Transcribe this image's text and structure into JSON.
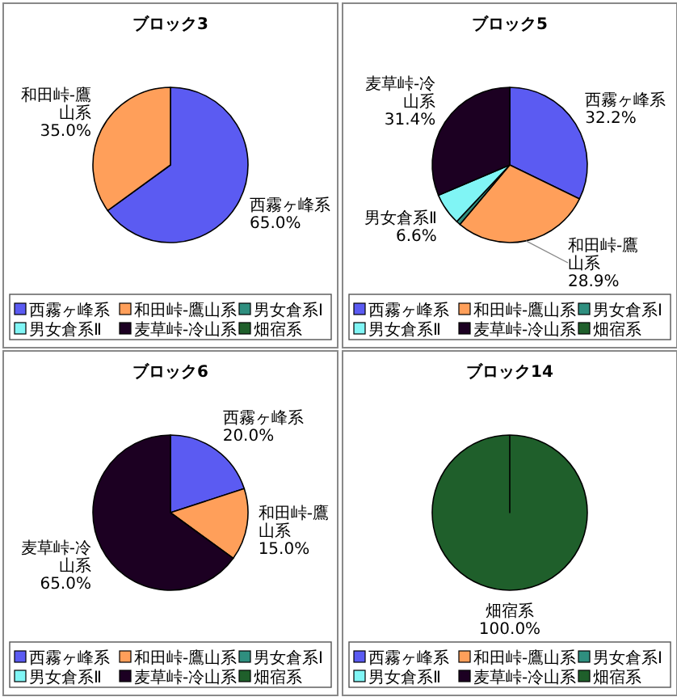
{
  "chart_data": [
    {
      "type": "pie",
      "title": "ブロック3",
      "categories": [
        "西霧ヶ峰系",
        "和田峠-鷹山系",
        "男女倉系Ⅰ",
        "男女倉系Ⅱ",
        "麦草峠-冷山系",
        "畑宿系"
      ],
      "values": [
        65.0,
        35.0,
        0,
        0,
        0,
        0
      ],
      "colors": [
        "#5b5bf2",
        "#ff9f5a",
        "#2f8f7f",
        "#80f5f5",
        "#1c0022",
        "#1f5f2b"
      ],
      "value_labels": [
        "65.0%",
        "35.0%",
        null,
        null,
        null,
        null
      ],
      "legend": "bottom"
    },
    {
      "type": "pie",
      "title": "ブロック5",
      "categories": [
        "西霧ヶ峰系",
        "和田峠-鷹山系",
        "男女倉系Ⅰ",
        "男女倉系Ⅱ",
        "麦草峠-冷山系",
        "畑宿系"
      ],
      "values": [
        32.2,
        28.9,
        0.9,
        6.6,
        31.4,
        0
      ],
      "colors": [
        "#5b5bf2",
        "#ff9f5a",
        "#2f8f7f",
        "#80f5f5",
        "#1c0022",
        "#1f5f2b"
      ],
      "value_labels": [
        "32.2%",
        "28.9%",
        null,
        "6.6%",
        "31.4%",
        null
      ],
      "legend": "bottom"
    },
    {
      "type": "pie",
      "title": "ブロック6",
      "categories": [
        "西霧ヶ峰系",
        "和田峠-鷹山系",
        "男女倉系Ⅰ",
        "男女倉系Ⅱ",
        "麦草峠-冷山系",
        "畑宿系"
      ],
      "values": [
        20.0,
        15.0,
        0,
        0,
        65.0,
        0
      ],
      "colors": [
        "#5b5bf2",
        "#ff9f5a",
        "#2f8f7f",
        "#80f5f5",
        "#1c0022",
        "#1f5f2b"
      ],
      "value_labels": [
        "20.0%",
        "15.0%",
        null,
        null,
        "65.0%",
        null
      ],
      "legend": "bottom"
    },
    {
      "type": "pie",
      "title": "ブロック14",
      "categories": [
        "西霧ヶ峰系",
        "和田峠-鷹山系",
        "男女倉系Ⅰ",
        "男女倉系Ⅱ",
        "麦草峠-冷山系",
        "畑宿系"
      ],
      "values": [
        0,
        0,
        0,
        0,
        0,
        100.0
      ],
      "colors": [
        "#5b5bf2",
        "#ff9f5a",
        "#2f8f7f",
        "#80f5f5",
        "#1c0022",
        "#1f5f2b"
      ],
      "value_labels": [
        null,
        null,
        null,
        null,
        null,
        "100.0%"
      ],
      "legend": "bottom"
    }
  ]
}
